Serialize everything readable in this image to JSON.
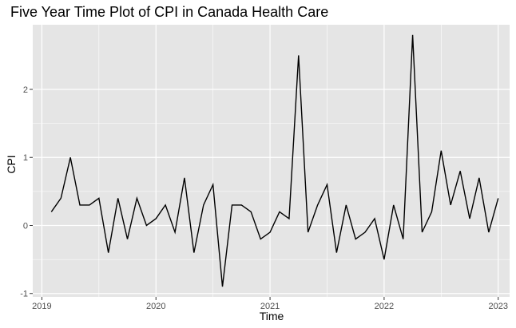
{
  "chart_data": {
    "type": "line",
    "title": "Five Year Time Plot of CPI in Canada Health Care",
    "xlabel": "Time",
    "ylabel": "CPI",
    "xlim": [
      2018.92,
      2023.1
    ],
    "ylim": [
      -1.05,
      2.95
    ],
    "x_ticks": [
      2019,
      2020,
      2021,
      2022,
      2023
    ],
    "x_tick_labels": [
      "2019",
      "2020",
      "2021",
      "2022",
      "2023"
    ],
    "y_ticks": [
      -1,
      0,
      1,
      2
    ],
    "y_tick_labels": [
      "-1",
      "0",
      "1",
      "2"
    ],
    "grid": true,
    "legend": "none",
    "colors": {
      "panel": "#e5e5e5",
      "grid": "#ffffff",
      "line": "#000000",
      "tick": "#4d4d4d"
    },
    "series": [
      {
        "x": [
          2019.083,
          2019.167,
          2019.25,
          2019.333,
          2019.417,
          2019.5,
          2019.583,
          2019.667,
          2019.75,
          2019.833,
          2019.917,
          2020.0,
          2020.083,
          2020.167,
          2020.25,
          2020.333,
          2020.417,
          2020.5,
          2020.583,
          2020.667,
          2020.75,
          2020.833,
          2020.917,
          2021.0,
          2021.083,
          2021.167,
          2021.25,
          2021.333,
          2021.417,
          2021.5,
          2021.583,
          2021.667,
          2021.75,
          2021.833,
          2021.917,
          2022.0,
          2022.083,
          2022.167,
          2022.25,
          2022.333,
          2022.417,
          2022.5,
          2022.583,
          2022.667,
          2022.75,
          2022.833,
          2022.917,
          2023.0
        ],
        "values": [
          0.2,
          0.4,
          1.0,
          0.3,
          0.3,
          0.4,
          -0.4,
          0.4,
          -0.2,
          0.4,
          0.0,
          0.1,
          0.3,
          -0.1,
          0.7,
          -0.4,
          0.3,
          0.6,
          -0.9,
          0.3,
          0.3,
          0.2,
          -0.2,
          -0.1,
          0.2,
          0.1,
          2.5,
          -0.1,
          0.3,
          0.6,
          -0.4,
          0.3,
          -0.2,
          -0.1,
          0.1,
          -0.5,
          0.3,
          -0.2,
          2.8,
          -0.1,
          0.2,
          1.1,
          0.3,
          0.8,
          0.1,
          0.7,
          -0.1,
          0.4
        ]
      }
    ]
  }
}
